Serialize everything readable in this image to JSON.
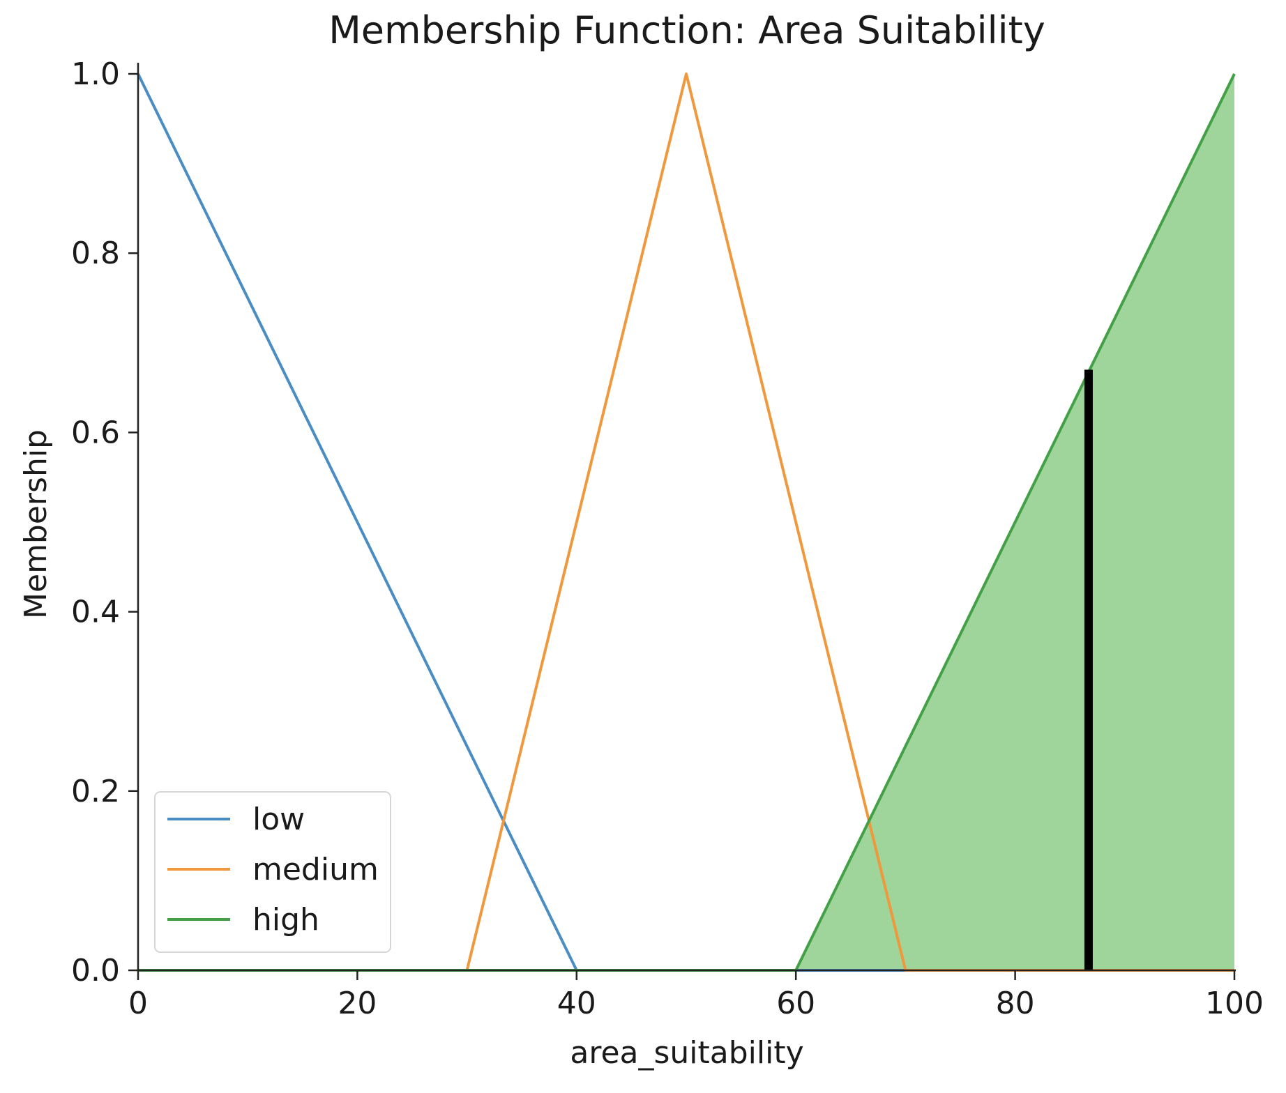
{
  "chart_data": {
    "type": "line",
    "title": "Membership Function: Area Suitability",
    "xlabel": "area_suitability",
    "ylabel": "Membership",
    "xlim": [
      0,
      100
    ],
    "ylim": [
      0,
      1
    ],
    "x_ticks": [
      "0",
      "20",
      "40",
      "60",
      "80",
      "100"
    ],
    "y_ticks": [
      "0.0",
      "0.2",
      "0.4",
      "0.6",
      "0.8",
      "1.0"
    ],
    "grid": false,
    "legend_placement": "lower-left",
    "series": [
      {
        "name": "low",
        "color": "#4a8cc4",
        "points": [
          [
            0,
            1.0
          ],
          [
            40,
            0.0
          ],
          [
            100,
            0.0
          ]
        ]
      },
      {
        "name": "medium",
        "color": "#f0983e",
        "points": [
          [
            0,
            0.0
          ],
          [
            30,
            0.0
          ],
          [
            50,
            1.0
          ],
          [
            70,
            0.0
          ],
          [
            100,
            0.0
          ]
        ]
      },
      {
        "name": "high",
        "color": "#43a047",
        "points": [
          [
            0,
            0.0
          ],
          [
            60,
            0.0
          ],
          [
            100,
            1.0
          ]
        ]
      }
    ],
    "filled_region": {
      "series": "high",
      "color": "#9fd49a",
      "points": [
        [
          60,
          0.0
        ],
        [
          100,
          1.0
        ],
        [
          100,
          0.0
        ]
      ]
    },
    "crisp_value_marker": {
      "x": 86.7,
      "y": 0.67,
      "color": "#000000"
    }
  }
}
